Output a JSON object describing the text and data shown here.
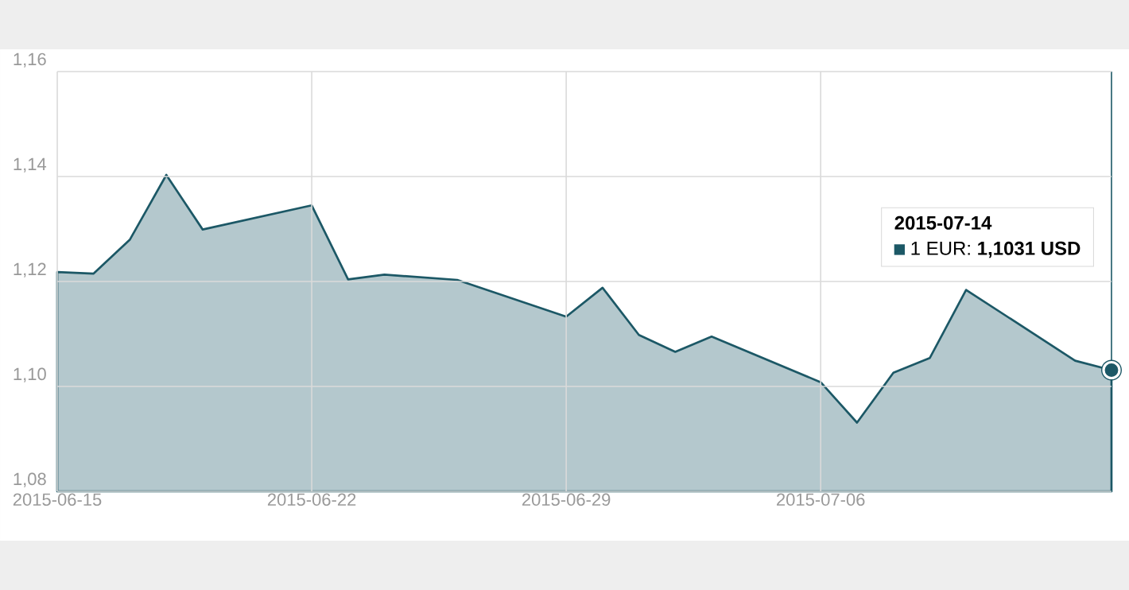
{
  "chart_data": {
    "type": "area",
    "color": "#1c5866",
    "x": [
      "2015-06-15",
      "2015-06-16",
      "2015-06-17",
      "2015-06-18",
      "2015-06-19",
      "2015-06-22",
      "2015-06-23",
      "2015-06-24",
      "2015-06-26",
      "2015-06-29",
      "2015-06-30",
      "2015-07-01",
      "2015-07-02",
      "2015-07-03",
      "2015-07-06",
      "2015-07-07",
      "2015-07-08",
      "2015-07-09",
      "2015-07-10",
      "2015-07-13",
      "2015-07-14"
    ],
    "values": [
      1.1218,
      1.1215,
      1.128,
      1.1403,
      1.1299,
      1.1345,
      1.1204,
      1.1213,
      1.1203,
      1.1133,
      1.1188,
      1.1098,
      1.1066,
      1.1095,
      1.1008,
      1.0931,
      1.1026,
      1.1054,
      1.1184,
      1.1049,
      1.1031
    ],
    "xlim": [
      "2015-06-15",
      "2015-07-14"
    ],
    "xticks": [
      "2015-06-15",
      "2015-06-22",
      "2015-06-29",
      "2015-07-06"
    ],
    "ylim": [
      1.08,
      1.16
    ],
    "yticks": [
      {
        "value": 1.08,
        "label": "1,08"
      },
      {
        "value": 1.1,
        "label": "1,10"
      },
      {
        "value": 1.12,
        "label": "1,12"
      },
      {
        "value": 1.14,
        "label": "1,14"
      },
      {
        "value": 1.16,
        "label": "1,16"
      }
    ],
    "grid": true,
    "annotations": [
      "2015-07-14",
      "1 EUR: **1,1031 USD**"
    ]
  }
}
